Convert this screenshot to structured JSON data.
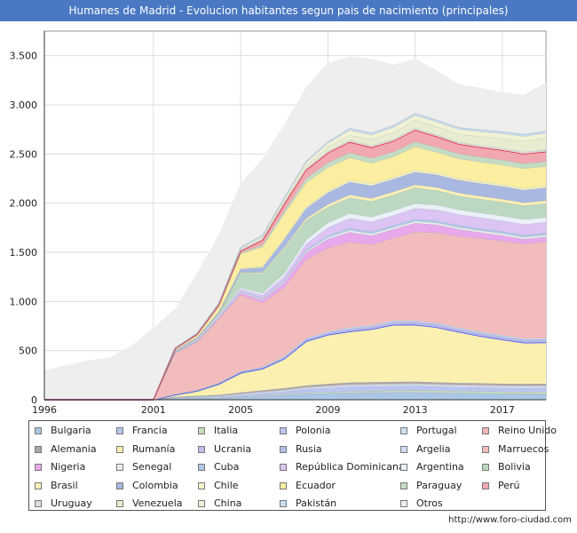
{
  "title": "Humanes de Madrid - Evolucion habitantes segun pais de nacimiento (principales)",
  "source": "http://www.foro-ciudad.com",
  "chart_data": {
    "type": "area",
    "stacked": true,
    "grid": true,
    "legend_position": "bottom",
    "xlim": [
      1996,
      2019
    ],
    "ylim": [
      0,
      3750
    ],
    "x_ticks": [
      1996,
      2001,
      2005,
      2009,
      2013,
      2017
    ],
    "y_ticks": [
      0,
      500,
      1000,
      1500,
      2000,
      2500,
      3000,
      3500
    ],
    "y_tick_labels": [
      "0",
      "500",
      "1.000",
      "1.500",
      "2.000",
      "2.500",
      "3.000",
      "3.500"
    ],
    "x": [
      1996,
      1998,
      1999,
      2000,
      2001,
      2002,
      2003,
      2004,
      2005,
      2006,
      2007,
      2008,
      2009,
      2010,
      2011,
      2012,
      2013,
      2014,
      2015,
      2016,
      2017,
      2018,
      2019
    ],
    "total": [
      300,
      400,
      430,
      550,
      730,
      930,
      1290,
      1680,
      2200,
      2450,
      2800,
      3180,
      3430,
      3490,
      3470,
      3410,
      3470,
      3350,
      3210,
      3170,
      3130,
      3100,
      3230
    ],
    "series": [
      {
        "name": "Bulgaria",
        "color": "#aac8e6",
        "values": [
          0,
          0,
          0,
          0,
          0,
          5,
          8,
          10,
          20,
          30,
          40,
          50,
          55,
          60,
          62,
          65,
          65,
          62,
          58,
          55,
          52,
          50,
          50
        ]
      },
      {
        "name": "Francia",
        "color": "#b8c8ec",
        "values": [
          0,
          0,
          0,
          0,
          0,
          5,
          5,
          6,
          8,
          10,
          10,
          12,
          12,
          12,
          12,
          12,
          12,
          12,
          12,
          12,
          12,
          12,
          12
        ]
      },
      {
        "name": "Italia",
        "color": "#c4e0b8",
        "values": [
          0,
          0,
          0,
          0,
          0,
          3,
          3,
          4,
          5,
          6,
          8,
          10,
          12,
          14,
          15,
          16,
          18,
          18,
          18,
          18,
          18,
          18,
          20
        ]
      },
      {
        "name": "Polonia",
        "color": "#bcc4f0",
        "values": [
          0,
          0,
          0,
          0,
          0,
          5,
          8,
          10,
          15,
          20,
          25,
          35,
          40,
          45,
          45,
          45,
          45,
          42,
          40,
          40,
          38,
          38,
          38
        ]
      },
      {
        "name": "Portugal",
        "color": "#cce0f0",
        "values": [
          0,
          0,
          0,
          0,
          0,
          5,
          6,
          8,
          10,
          12,
          14,
          16,
          18,
          20,
          20,
          20,
          20,
          20,
          20,
          20,
          20,
          20,
          20
        ]
      },
      {
        "name": "Reino Unido",
        "color": "#f0b8b8",
        "values": [
          0,
          0,
          0,
          0,
          0,
          3,
          3,
          4,
          5,
          6,
          6,
          7,
          8,
          8,
          8,
          8,
          8,
          8,
          8,
          8,
          8,
          8,
          8
        ]
      },
      {
        "name": "Alemania",
        "color": "#a8a8a8",
        "values": [
          0,
          0,
          0,
          0,
          0,
          5,
          6,
          8,
          10,
          12,
          14,
          15,
          16,
          16,
          16,
          16,
          16,
          15,
          15,
          15,
          15,
          15,
          15
        ]
      },
      {
        "name": "Rumanía",
        "color": "#fbf0b0",
        "values": [
          0,
          0,
          0,
          0,
          0,
          20,
          50,
          110,
          200,
          220,
          300,
          450,
          500,
          520,
          540,
          580,
          580,
          560,
          520,
          480,
          450,
          420,
          420
        ]
      },
      {
        "name": "Ucrania",
        "color": "#c8b8ec",
        "values": [
          0,
          0,
          0,
          0,
          0,
          2,
          2,
          3,
          5,
          6,
          8,
          10,
          12,
          14,
          15,
          15,
          16,
          16,
          16,
          16,
          16,
          16,
          16
        ]
      },
      {
        "name": "Rusia",
        "color": "#b4c0ec",
        "values": [
          0,
          0,
          0,
          0,
          0,
          2,
          2,
          3,
          5,
          6,
          8,
          10,
          12,
          14,
          14,
          15,
          15,
          15,
          15,
          15,
          15,
          15,
          15
        ]
      },
      {
        "name": "Argelia",
        "color": "#d0dcf4",
        "values": [
          0,
          0,
          0,
          0,
          0,
          2,
          3,
          4,
          5,
          6,
          8,
          10,
          10,
          12,
          12,
          12,
          12,
          12,
          12,
          12,
          12,
          12,
          12
        ]
      },
      {
        "name": "Marruecos",
        "color": "#f3bcbc",
        "values": [
          0,
          0,
          0,
          0,
          0,
          420,
          490,
          650,
          780,
          650,
          700,
          800,
          850,
          870,
          820,
          840,
          900,
          920,
          930,
          950,
          960,
          960,
          980
        ]
      },
      {
        "name": "Nigeria",
        "color": "#e8a8ec",
        "values": [
          0,
          0,
          0,
          0,
          0,
          3,
          5,
          10,
          20,
          30,
          50,
          70,
          90,
          100,
          90,
          90,
          90,
          80,
          70,
          60,
          55,
          50,
          50
        ]
      },
      {
        "name": "Senegal",
        "color": "#ececec",
        "values": [
          0,
          0,
          0,
          0,
          0,
          2,
          3,
          5,
          8,
          10,
          12,
          15,
          18,
          20,
          20,
          20,
          20,
          20,
          20,
          20,
          20,
          20,
          20
        ]
      },
      {
        "name": "Cuba",
        "color": "#b0c8e8",
        "values": [
          0,
          0,
          0,
          0,
          0,
          2,
          3,
          5,
          8,
          10,
          12,
          15,
          18,
          20,
          20,
          20,
          20,
          20,
          20,
          20,
          20,
          20,
          20
        ]
      },
      {
        "name": "República Dominicana",
        "color": "#dcc4f4",
        "values": [
          0,
          0,
          0,
          0,
          0,
          5,
          8,
          12,
          20,
          30,
          40,
          60,
          80,
          100,
          100,
          100,
          110,
          110,
          110,
          110,
          110,
          110,
          110
        ]
      },
      {
        "name": "Argentina",
        "color": "#eaf0f8",
        "values": [
          0,
          0,
          0,
          0,
          0,
          5,
          8,
          10,
          15,
          20,
          30,
          40,
          50,
          50,
          50,
          50,
          50,
          50,
          50,
          50,
          50,
          50,
          50
        ]
      },
      {
        "name": "Bolivia",
        "color": "#bcd8c0",
        "values": [
          0,
          0,
          0,
          0,
          0,
          3,
          5,
          10,
          150,
          200,
          250,
          200,
          160,
          160,
          160,
          160,
          160,
          150,
          140,
          140,
          140,
          140,
          140
        ]
      },
      {
        "name": "Brasil",
        "color": "#fcf0b4",
        "values": [
          0,
          0,
          0,
          0,
          0,
          2,
          3,
          5,
          8,
          10,
          15,
          20,
          25,
          30,
          30,
          30,
          30,
          30,
          30,
          30,
          30,
          30,
          30
        ]
      },
      {
        "name": "Colombia",
        "color": "#a8b8e0",
        "values": [
          0,
          0,
          0,
          0,
          0,
          5,
          10,
          15,
          30,
          50,
          80,
          100,
          120,
          130,
          130,
          130,
          130,
          130,
          130,
          130,
          130,
          130,
          130
        ]
      },
      {
        "name": "Chile",
        "color": "#f6f2c8",
        "values": [
          0,
          0,
          0,
          0,
          0,
          2,
          3,
          5,
          8,
          10,
          12,
          14,
          16,
          18,
          18,
          18,
          18,
          18,
          18,
          18,
          18,
          18,
          18
        ]
      },
      {
        "name": "Ecuador",
        "color": "#fbeea0",
        "values": [
          0,
          0,
          0,
          0,
          0,
          10,
          20,
          50,
          150,
          200,
          250,
          250,
          240,
          230,
          210,
          210,
          240,
          210,
          200,
          200,
          200,
          200,
          200
        ]
      },
      {
        "name": "Paraguay",
        "color": "#c4dcc4",
        "values": [
          0,
          0,
          0,
          0,
          0,
          2,
          3,
          5,
          10,
          20,
          30,
          40,
          50,
          50,
          50,
          50,
          50,
          50,
          50,
          50,
          50,
          50,
          50
        ]
      },
      {
        "name": "Perú",
        "color": "#f2a8b0",
        "values": [
          0,
          0,
          0,
          0,
          0,
          5,
          10,
          15,
          20,
          50,
          70,
          90,
          100,
          110,
          110,
          110,
          120,
          110,
          100,
          100,
          100,
          100,
          100
        ]
      },
      {
        "name": "Uruguay",
        "color": "#dcdcdc",
        "values": [
          0,
          0,
          0,
          0,
          0,
          2,
          3,
          5,
          8,
          10,
          12,
          14,
          16,
          18,
          18,
          18,
          18,
          18,
          18,
          18,
          18,
          18,
          18
        ]
      },
      {
        "name": "Venezuela",
        "color": "#e8ecd0",
        "values": [
          0,
          0,
          0,
          0,
          0,
          2,
          3,
          5,
          10,
          15,
          20,
          30,
          40,
          50,
          60,
          70,
          80,
          80,
          80,
          90,
          100,
          110,
          120
        ]
      },
      {
        "name": "China",
        "color": "#f2f2d4",
        "values": [
          0,
          0,
          0,
          0,
          0,
          2,
          3,
          5,
          10,
          15,
          20,
          30,
          40,
          50,
          50,
          50,
          50,
          50,
          50,
          50,
          50,
          50,
          50
        ]
      },
      {
        "name": "Pakistán",
        "color": "#c8e0f4",
        "values": [
          0,
          0,
          0,
          0,
          0,
          2,
          3,
          5,
          8,
          10,
          12,
          14,
          16,
          18,
          18,
          18,
          18,
          18,
          18,
          18,
          18,
          18,
          18
        ]
      }
    ],
    "other": {
      "name": "Otros",
      "color": "#eeeeee"
    }
  }
}
